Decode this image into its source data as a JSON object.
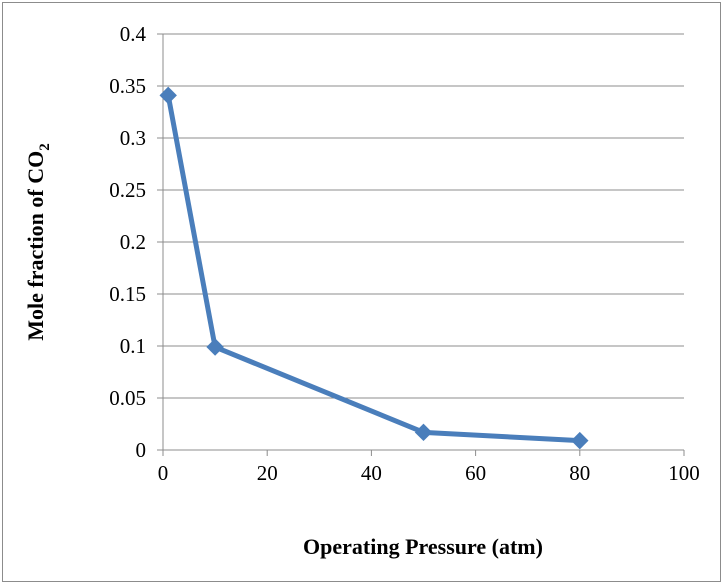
{
  "chart_data": {
    "type": "line",
    "title": "",
    "xlabel": "Operating Pressure (atm)",
    "ylabel_main": "Mole fraction of CO",
    "ylabel_sub": "2",
    "xlim": [
      0,
      100
    ],
    "ylim": [
      0,
      0.4
    ],
    "x_ticks": [
      0,
      20,
      40,
      60,
      80,
      100
    ],
    "y_ticks": [
      0,
      0.05,
      0.1,
      0.15,
      0.2,
      0.25,
      0.3,
      0.35,
      0.4
    ],
    "x_tick_labels": [
      "0",
      "20",
      "40",
      "60",
      "80",
      "100"
    ],
    "y_tick_labels": [
      "0",
      "0.05",
      "0.1",
      "0.15",
      "0.2",
      "0.25",
      "0.3",
      "0.35",
      "0.4"
    ],
    "grid": "horizontal",
    "legend": "none",
    "series": [
      {
        "color": "#4a7ebb",
        "marker": "diamond",
        "x": [
          1,
          10,
          50,
          80
        ],
        "y": [
          0.341,
          0.099,
          0.017,
          0.009
        ]
      }
    ]
  }
}
